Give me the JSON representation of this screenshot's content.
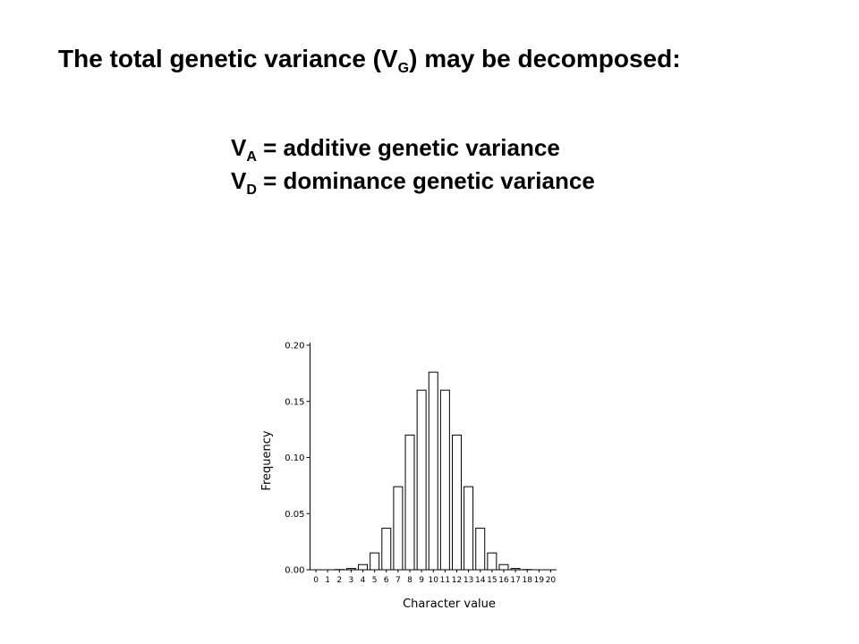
{
  "slide": {
    "title": [
      "The total genetic variance (V",
      "G",
      ") may be decomposed:"
    ],
    "bullets": [
      [
        "V",
        "A",
        " = additive genetic variance"
      ],
      [
        "V",
        "D",
        " = dominance genetic variance"
      ]
    ]
  },
  "chart_data": {
    "type": "bar",
    "x_label": "Character value",
    "y_label": "Frequency",
    "categories": [
      "0",
      "1",
      "2",
      "3",
      "4",
      "5",
      "6",
      "7",
      "8",
      "9",
      "10",
      "11",
      "12",
      "13",
      "14",
      "15",
      "16",
      "17",
      "18",
      "19",
      "20"
    ],
    "values": [
      0,
      0,
      0.0002,
      0.0011,
      0.0046,
      0.015,
      0.037,
      0.074,
      0.12,
      0.16,
      0.176,
      0.16,
      0.12,
      0.074,
      0.037,
      0.015,
      0.0046,
      0.0011,
      0.0002,
      0,
      0
    ],
    "color": "#ffffff",
    "ylim": [
      0,
      0.2
    ],
    "yticks": [
      {
        "value": 0,
        "label": "0.00"
      },
      {
        "value": 0.05,
        "label": "0.05"
      },
      {
        "value": 0.1,
        "label": "0.10"
      },
      {
        "value": 0.15,
        "label": "0.15"
      },
      {
        "value": 0.2,
        "label": "0.20"
      }
    ]
  }
}
